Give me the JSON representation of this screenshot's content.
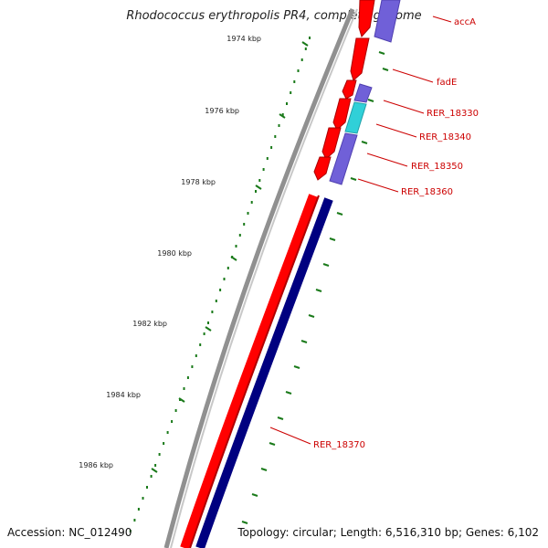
{
  "title": "Rhodococcus erythropolis PR4, complete genome",
  "accession": "Accession: NC_012490",
  "topology": "Topology: circular; Length: 6,516,310 bp; Genes: 6,102",
  "ruler": {
    "labels": [
      "1974 kbp",
      "1976 kbp",
      "1978 kbp",
      "1980 kbp",
      "1982 kbp",
      "1984 kbp",
      "1986 kbp"
    ]
  },
  "genes": [
    {
      "name": "accA",
      "strand": "minus",
      "color": "#7060d8"
    },
    {
      "name": "fadE",
      "strand": "plus",
      "color": "#ff0000"
    },
    {
      "name": "RER_18330",
      "strand": "minus",
      "color": "#7060d8"
    },
    {
      "name": "RER_18340",
      "strand": "minus",
      "color": "#30d0d8"
    },
    {
      "name": "RER_18350",
      "strand": "minus",
      "color": "#7060d8"
    },
    {
      "name": "RER_18360",
      "strand": "plus",
      "color": "#ff0000"
    },
    {
      "name": "RER_18370",
      "strand": "minus",
      "color": "#000080"
    }
  ],
  "colors": {
    "backbone": "#808080",
    "plus_strand": "#ff0000",
    "minus_strand": "#000080",
    "ticks": "#1a7a1a",
    "labels": "#cc0000",
    "leader_lines": "#cc0000"
  }
}
